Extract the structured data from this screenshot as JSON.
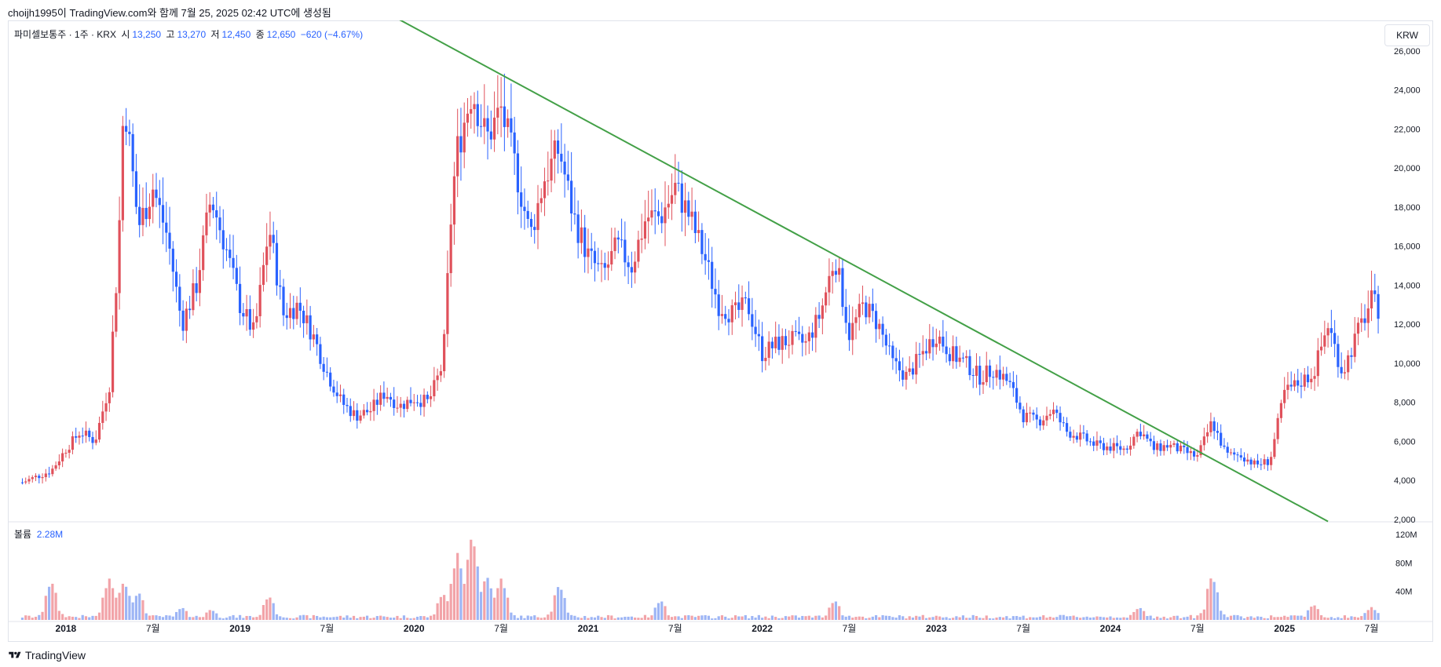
{
  "header": {
    "created_by": "choijh1995이 TradingView.com와 함께 7월 25, 2025 02:42 UTC에 생성됨"
  },
  "legend": {
    "symbol": "파미셀보통주 · 1주 · KRX",
    "open_label": "시",
    "open": "13,250",
    "high_label": "고",
    "high": "13,270",
    "low_label": "저",
    "low": "12,450",
    "close_label": "종",
    "close": "12,650",
    "change": "−620 (−4.67%)"
  },
  "volume_legend": {
    "label": "볼륨",
    "value": "2.28M"
  },
  "currency_button": "KRW",
  "footer": {
    "brand": "TradingView"
  },
  "colors": {
    "up": "#e0515b",
    "down": "#2962ff",
    "up_volume": "#f2a3a8",
    "down_volume": "#9db5f5",
    "trendline": "#43a047"
  },
  "chart_data": [
    {
      "type": "candlestick",
      "interval": "1W",
      "y_axis_ticks": [
        "2,000",
        "4,000",
        "6,000",
        "8,000",
        "10,000",
        "12,000",
        "14,000",
        "16,000",
        "18,000",
        "20,000",
        "22,000",
        "24,000",
        "26,000"
      ],
      "ylim": [
        2000,
        27000
      ],
      "x_axis_ticks": [
        "2018",
        "7월",
        "2019",
        "7월",
        "2020",
        "7월",
        "2021",
        "7월",
        "2022",
        "7월",
        "2023",
        "7월",
        "2024",
        "7월",
        "2025",
        "7월"
      ],
      "xlim": [
        "2017-09",
        "2025-08"
      ],
      "close_path": [
        {
          "x": "2017-10",
          "y": 3900
        },
        {
          "x": "2017-12",
          "y": 4500
        },
        {
          "x": "2018-01",
          "y": 5600
        },
        {
          "x": "2018-02",
          "y": 6500
        },
        {
          "x": "2018-03",
          "y": 6000
        },
        {
          "x": "2018-04",
          "y": 8900
        },
        {
          "x": "2018-04-20",
          "y": 15800
        },
        {
          "x": "2018-05",
          "y": 23800
        },
        {
          "x": "2018-06",
          "y": 17000
        },
        {
          "x": "2018-07",
          "y": 19000
        },
        {
          "x": "2018-08",
          "y": 16500
        },
        {
          "x": "2018-09",
          "y": 12000
        },
        {
          "x": "2018-10",
          "y": 14000
        },
        {
          "x": "2018-11",
          "y": 18500
        },
        {
          "x": "2018-12",
          "y": 16000
        },
        {
          "x": "2019-01",
          "y": 13000
        },
        {
          "x": "2019-02",
          "y": 11500
        },
        {
          "x": "2019-03",
          "y": 17000
        },
        {
          "x": "2019-04",
          "y": 12500
        },
        {
          "x": "2019-05",
          "y": 13000
        },
        {
          "x": "2019-06",
          "y": 11500
        },
        {
          "x": "2019-07",
          "y": 9500
        },
        {
          "x": "2019-08",
          "y": 8000
        },
        {
          "x": "2019-09",
          "y": 7300
        },
        {
          "x": "2019-10",
          "y": 7600
        },
        {
          "x": "2019-11",
          "y": 8500
        },
        {
          "x": "2019-12",
          "y": 7800
        },
        {
          "x": "2020-01",
          "y": 8200
        },
        {
          "x": "2020-02",
          "y": 8000
        },
        {
          "x": "2020-03",
          "y": 10000
        },
        {
          "x": "2020-03-20",
          "y": 18500
        },
        {
          "x": "2020-04",
          "y": 21000
        },
        {
          "x": "2020-05",
          "y": 24000
        },
        {
          "x": "2020-06",
          "y": 21500
        },
        {
          "x": "2020-07",
          "y": 23000
        },
        {
          "x": "2020-08",
          "y": 20000
        },
        {
          "x": "2020-09",
          "y": 16500
        },
        {
          "x": "2020-10",
          "y": 19500
        },
        {
          "x": "2020-11",
          "y": 21000
        },
        {
          "x": "2020-12",
          "y": 17500
        },
        {
          "x": "2021-01",
          "y": 15500
        },
        {
          "x": "2021-02",
          "y": 14500
        },
        {
          "x": "2021-03",
          "y": 16000
        },
        {
          "x": "2021-04",
          "y": 15000
        },
        {
          "x": "2021-05",
          "y": 17500
        },
        {
          "x": "2021-06",
          "y": 17500
        },
        {
          "x": "2021-07",
          "y": 19000
        },
        {
          "x": "2021-08",
          "y": 17500
        },
        {
          "x": "2021-09",
          "y": 15500
        },
        {
          "x": "2021-10",
          "y": 13000
        },
        {
          "x": "2021-11",
          "y": 12500
        },
        {
          "x": "2021-12",
          "y": 13000
        },
        {
          "x": "2022-01",
          "y": 10500
        },
        {
          "x": "2022-02",
          "y": 11000
        },
        {
          "x": "2022-03",
          "y": 11200
        },
        {
          "x": "2022-04",
          "y": 11000
        },
        {
          "x": "2022-05",
          "y": 12500
        },
        {
          "x": "2022-06",
          "y": 15500
        },
        {
          "x": "2022-07",
          "y": 11500
        },
        {
          "x": "2022-08",
          "y": 13000
        },
        {
          "x": "2022-09",
          "y": 12000
        },
        {
          "x": "2022-10",
          "y": 10000
        },
        {
          "x": "2022-11",
          "y": 9300
        },
        {
          "x": "2022-12",
          "y": 10500
        },
        {
          "x": "2023-01",
          "y": 11500
        },
        {
          "x": "2023-02",
          "y": 10500
        },
        {
          "x": "2023-03",
          "y": 10000
        },
        {
          "x": "2023-04",
          "y": 9300
        },
        {
          "x": "2023-05",
          "y": 9700
        },
        {
          "x": "2023-06",
          "y": 9000
        },
        {
          "x": "2023-07",
          "y": 7300
        },
        {
          "x": "2023-08",
          "y": 7000
        },
        {
          "x": "2023-09",
          "y": 7600
        },
        {
          "x": "2023-10",
          "y": 6500
        },
        {
          "x": "2023-11",
          "y": 6200
        },
        {
          "x": "2023-12",
          "y": 5800
        },
        {
          "x": "2024-01",
          "y": 5700
        },
        {
          "x": "2024-02",
          "y": 5600
        },
        {
          "x": "2024-03",
          "y": 6600
        },
        {
          "x": "2024-04",
          "y": 5600
        },
        {
          "x": "2024-05",
          "y": 5800
        },
        {
          "x": "2024-06",
          "y": 5500
        },
        {
          "x": "2024-07",
          "y": 5200
        },
        {
          "x": "2024-08",
          "y": 7000
        },
        {
          "x": "2024-09",
          "y": 5300
        },
        {
          "x": "2024-10",
          "y": 5300
        },
        {
          "x": "2024-11",
          "y": 4800
        },
        {
          "x": "2024-12",
          "y": 5000
        },
        {
          "x": "2025-01",
          "y": 8500
        },
        {
          "x": "2025-02",
          "y": 9000
        },
        {
          "x": "2025-03",
          "y": 9500
        },
        {
          "x": "2025-04",
          "y": 12000
        },
        {
          "x": "2025-05",
          "y": 9500
        },
        {
          "x": "2025-06",
          "y": 11500
        },
        {
          "x": "2025-07",
          "y": 13200
        },
        {
          "x": "2025-07-21",
          "y": 12650
        }
      ],
      "trendline": [
        {
          "x": "2019-11",
          "y": 28000
        },
        {
          "x": "2025-04",
          "y": 1900
        }
      ]
    },
    {
      "type": "bar",
      "name": "볼륨",
      "y_axis_ticks": [
        "40M",
        "80M",
        "120M"
      ],
      "ylim": [
        0,
        130
      ],
      "spikes": [
        {
          "x": "2017-12",
          "y": 55
        },
        {
          "x": "2018-04",
          "y": 58
        },
        {
          "x": "2018-05",
          "y": 55
        },
        {
          "x": "2018-06",
          "y": 40
        },
        {
          "x": "2018-09",
          "y": 18
        },
        {
          "x": "2018-11",
          "y": 15
        },
        {
          "x": "2019-03",
          "y": 34
        },
        {
          "x": "2020-03",
          "y": 38
        },
        {
          "x": "2020-04",
          "y": 94
        },
        {
          "x": "2020-05",
          "y": 122
        },
        {
          "x": "2020-06",
          "y": 64
        },
        {
          "x": "2020-07",
          "y": 58
        },
        {
          "x": "2020-11",
          "y": 50
        },
        {
          "x": "2021-06",
          "y": 28
        },
        {
          "x": "2022-06",
          "y": 28
        },
        {
          "x": "2024-03",
          "y": 18
        },
        {
          "x": "2024-08",
          "y": 63
        },
        {
          "x": "2025-03",
          "y": 22
        },
        {
          "x": "2025-07",
          "y": 18
        }
      ]
    }
  ]
}
